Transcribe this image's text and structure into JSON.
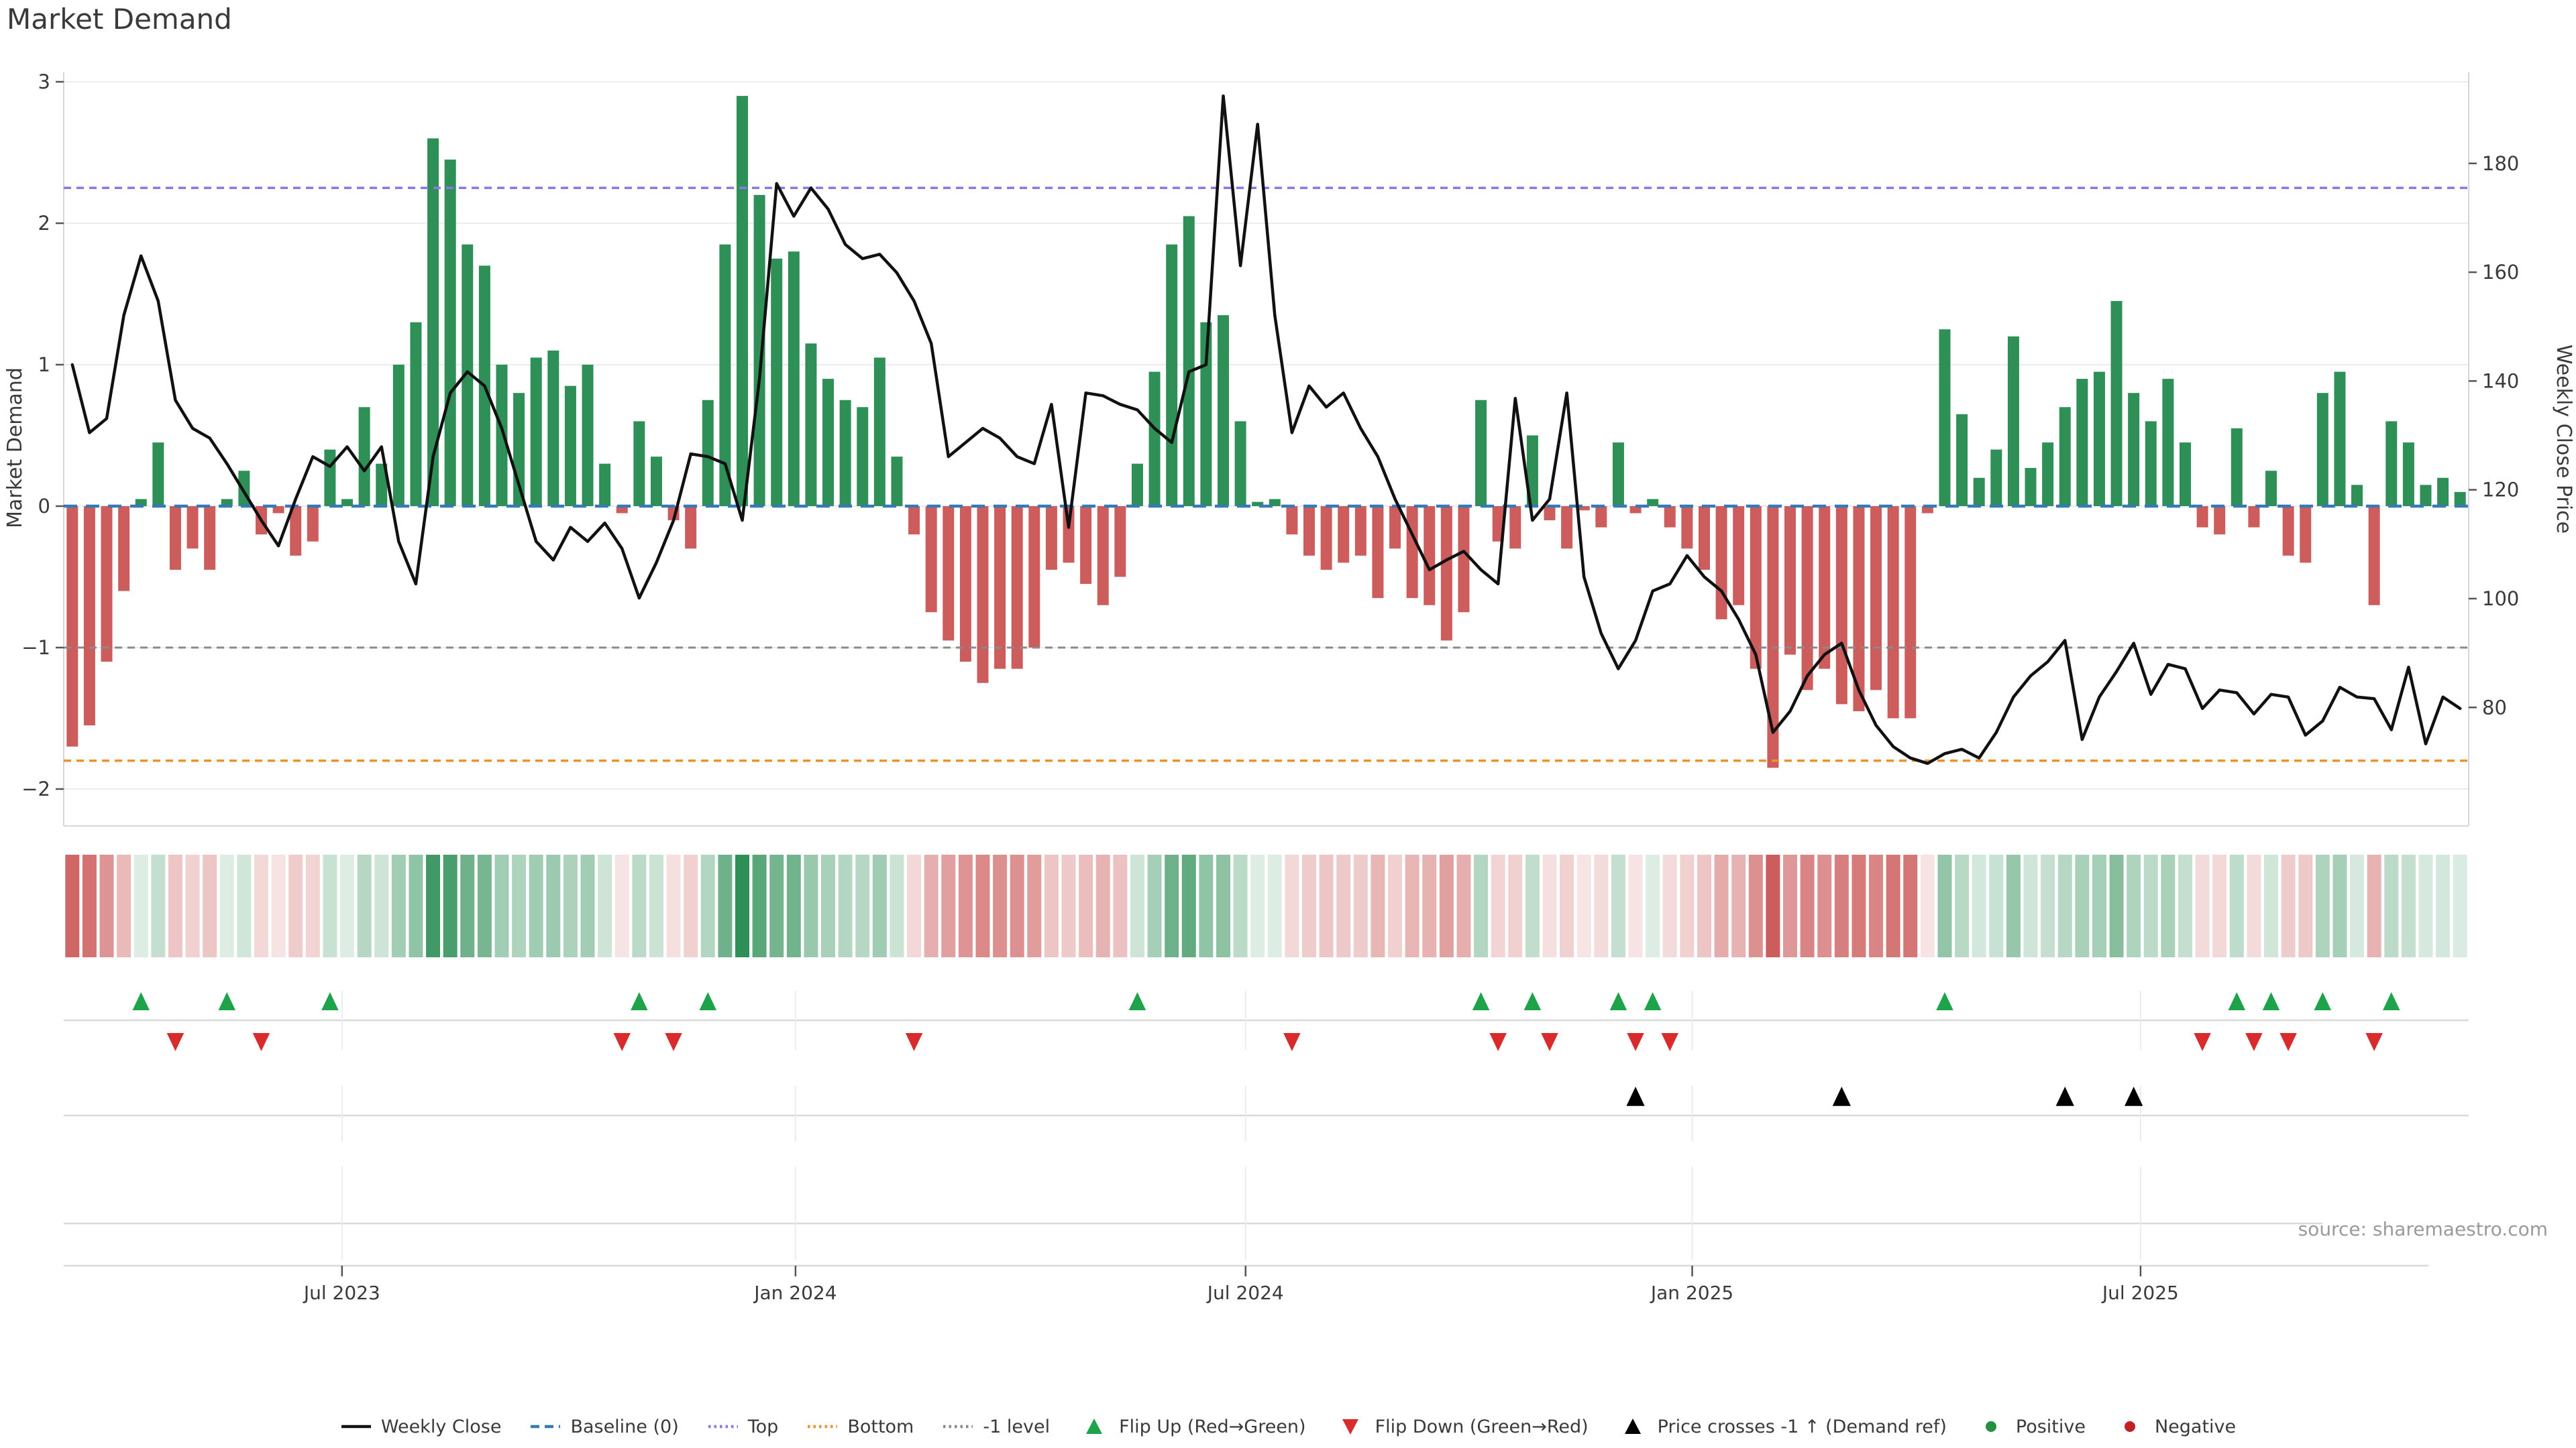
{
  "title": "Market Demand",
  "source_note": "source: sharemaestro.com",
  "axes": {
    "left_label": "Market Demand",
    "right_label": "Weekly Close Price",
    "left_ticks": [
      3,
      2,
      1,
      0,
      -1,
      -2
    ],
    "right_ticks": [
      180,
      160,
      140,
      120,
      100,
      80
    ],
    "x_ticks": [
      {
        "label": "Jul 2023",
        "week": 15.7
      },
      {
        "label": "Jan 2024",
        "week": 42.1
      },
      {
        "label": "Jul 2024",
        "week": 68.3
      },
      {
        "label": "Jan 2025",
        "week": 94.3
      },
      {
        "label": "Jul 2025",
        "week": 120.4
      }
    ]
  },
  "chart_data": {
    "type": "bar",
    "title": "Market Demand",
    "x_unit": "weeks (Mar 2023 - Nov 2025)",
    "n_points": 140,
    "ylim_left": [
      -2.3,
      3.05
    ],
    "ylim_right": [
      58,
      196
    ],
    "grid": "horizontal-light",
    "legend_position": "bottom-center",
    "ref_lines": {
      "baseline": 0,
      "top": 2.25,
      "bottom": -1.8,
      "minus1_level": -1
    },
    "series": [
      {
        "name": "Market Demand",
        "type": "bar",
        "axis": "left",
        "values": [
          -1.7,
          -1.55,
          -1.1,
          -0.6,
          0.05,
          0.45,
          -0.45,
          -0.3,
          -0.45,
          0.05,
          0.25,
          -0.2,
          -0.05,
          -0.35,
          -0.25,
          0.4,
          0.05,
          0.7,
          0.3,
          1.0,
          1.3,
          2.6,
          2.45,
          1.85,
          1.7,
          1.0,
          0.8,
          1.05,
          1.1,
          0.85,
          1.0,
          0.3,
          -0.05,
          0.6,
          0.35,
          -0.1,
          -0.3,
          0.75,
          1.85,
          2.9,
          2.2,
          1.75,
          1.8,
          1.15,
          0.9,
          0.75,
          0.7,
          1.05,
          0.35,
          -0.2,
          -0.75,
          -0.95,
          -1.1,
          -1.25,
          -1.15,
          -1.15,
          -1.0,
          -0.45,
          -0.4,
          -0.55,
          -0.7,
          -0.5,
          0.3,
          0.95,
          1.85,
          2.05,
          1.3,
          1.35,
          0.6,
          0.03,
          0.05,
          -0.2,
          -0.35,
          -0.45,
          -0.4,
          -0.35,
          -0.65,
          -0.3,
          -0.65,
          -0.7,
          -0.95,
          -0.75,
          0.75,
          -0.25,
          -0.3,
          0.5,
          -0.1,
          -0.3,
          -0.03,
          -0.15,
          0.45,
          -0.05,
          0.05,
          -0.15,
          -0.3,
          -0.45,
          -0.8,
          -0.7,
          -1.15,
          -1.85,
          -1.05,
          -1.3,
          -1.15,
          -1.4,
          -1.45,
          -1.3,
          -1.5,
          -1.5,
          -0.05,
          1.25,
          0.65,
          0.2,
          0.4,
          1.2,
          0.27,
          0.45,
          0.7,
          0.9,
          0.95,
          1.45,
          0.8,
          0.6,
          0.9,
          0.45,
          -0.15,
          -0.2,
          0.55,
          -0.15,
          0.25,
          -0.35,
          -0.4,
          0.8,
          0.95,
          0.15,
          -0.7,
          0.6,
          0.45,
          0.15,
          0.2,
          0.1
        ]
      },
      {
        "name": "Weekly Close",
        "type": "line",
        "axis": "right",
        "values": [
          143.0,
          130.5,
          133.1,
          152.1,
          163.0,
          154.7,
          136.5,
          131.3,
          129.5,
          124.8,
          119.6,
          114.4,
          109.7,
          118.3,
          126.1,
          124.3,
          127.9,
          123.5,
          127.9,
          110.5,
          102.7,
          126.1,
          137.8,
          141.7,
          139.1,
          131.3,
          120.9,
          110.5,
          107.1,
          113.1,
          110.5,
          113.9,
          109.2,
          100.1,
          106.6,
          114.4,
          126.6,
          126.1,
          124.8,
          114.4,
          140.4,
          176.3,
          170.3,
          175.5,
          171.6,
          165.1,
          162.5,
          163.3,
          159.9,
          154.7,
          146.9,
          126.1,
          128.7,
          131.3,
          129.5,
          126.1,
          124.8,
          135.7,
          113.1,
          137.8,
          137.3,
          135.7,
          134.7,
          131.3,
          128.7,
          141.7,
          143.0,
          192.4,
          161.2,
          187.2,
          152.1,
          130.5,
          139.1,
          135.2,
          137.8,
          131.3,
          126.1,
          118.3,
          111.8,
          105.3,
          107.1,
          108.7,
          105.3,
          102.7,
          136.8,
          114.4,
          118.3,
          137.8,
          104.0,
          93.6,
          87.1,
          92.3,
          101.4,
          102.7,
          107.9,
          104.0,
          101.4,
          96.2,
          89.7,
          75.4,
          79.3,
          85.8,
          89.7,
          91.8,
          83.2,
          76.7,
          72.8,
          70.7,
          69.7,
          71.5,
          72.3,
          70.7,
          75.4,
          81.9,
          85.8,
          88.4,
          92.3,
          74.1,
          81.9,
          86.6,
          91.8,
          82.4,
          87.9,
          87.1,
          79.8,
          83.2,
          82.7,
          78.8,
          82.4,
          81.9,
          74.9,
          77.5,
          83.7,
          81.9,
          81.6,
          75.9,
          87.4,
          73.3,
          81.9,
          79.8
        ]
      }
    ],
    "heatmap_strip": "same values as Market Demand bars, color intensity by magnitude",
    "markers": {
      "flip_up_weeks": [
        4,
        9,
        15,
        33,
        37,
        62,
        82,
        85,
        90,
        92,
        109,
        126,
        128,
        131,
        135
      ],
      "flip_down_weeks": [
        6,
        11,
        32,
        35,
        49,
        71,
        83,
        86,
        91,
        93,
        124,
        127,
        129,
        134
      ],
      "price_cross_weeks": [
        91,
        103,
        116,
        120
      ]
    }
  },
  "legend": {
    "items": [
      {
        "label": "Weekly Close",
        "swatch": "line",
        "color": "#111111"
      },
      {
        "label": "Baseline (0)",
        "swatch": "dashed",
        "color": "#3579b5"
      },
      {
        "label": "Top",
        "swatch": "dotted",
        "color": "#8878e8"
      },
      {
        "label": "Bottom",
        "swatch": "dotted",
        "color": "#e8932c"
      },
      {
        "label": "-1 level",
        "swatch": "dotted",
        "color": "#8a8a8a"
      },
      {
        "label": "Flip Up (Red→Green)",
        "swatch": "triangle-up",
        "color": "#1ea24a"
      },
      {
        "label": "Flip Down (Green→Red)",
        "swatch": "triangle-down",
        "color": "#d92b2b"
      },
      {
        "label": "Price crosses -1 ↑ (Demand ref)",
        "swatch": "triangle-up",
        "color": "#000000"
      },
      {
        "label": "Positive",
        "swatch": "circle",
        "color": "#23913f"
      },
      {
        "label": "Negative",
        "swatch": "circle",
        "color": "#c22126"
      }
    ]
  },
  "colors": {
    "bar_positive": "#2e8f57",
    "bar_negative": "#cd5c5c",
    "price_line": "#111111",
    "baseline": "#3579b5",
    "top_line": "#8878e8",
    "bottom_line": "#e8932c",
    "minus1_line": "#8a8a8a",
    "flip_up": "#1ea24a",
    "flip_down": "#d92b2b",
    "price_cross": "#000000",
    "grid": "#ebebf2",
    "spine": "#d5d5dd",
    "lane_line": "#d9d9d9",
    "text": "#3a3a3a",
    "muted_text": "#9a9a9a"
  }
}
